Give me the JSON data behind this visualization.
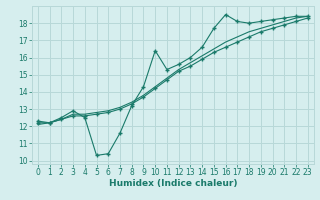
{
  "xlabel": "Humidex (Indice chaleur)",
  "ylabel": "",
  "background_color": "#d6eeee",
  "grid_color": "#b8d8d8",
  "line_color": "#1a7a6a",
  "xlim": [
    -0.5,
    23.5
  ],
  "ylim": [
    9.8,
    19.0
  ],
  "xticks": [
    0,
    1,
    2,
    3,
    4,
    5,
    6,
    7,
    8,
    9,
    10,
    11,
    12,
    13,
    14,
    15,
    16,
    17,
    18,
    19,
    20,
    21,
    22,
    23
  ],
  "yticks": [
    10,
    11,
    12,
    13,
    14,
    15,
    16,
    17,
    18
  ],
  "line1_x": [
    0,
    1,
    2,
    3,
    4,
    5,
    6,
    7,
    8,
    9,
    10,
    11,
    12,
    13,
    14,
    15,
    16,
    17,
    18,
    19,
    20,
    21,
    22,
    23
  ],
  "line1_y": [
    12.3,
    12.2,
    12.5,
    12.9,
    12.5,
    10.3,
    10.4,
    11.6,
    13.2,
    14.3,
    16.4,
    15.3,
    15.6,
    16.0,
    16.6,
    17.7,
    18.5,
    18.1,
    18.0,
    18.1,
    18.2,
    18.3,
    18.4,
    18.4
  ],
  "line2_x": [
    0,
    1,
    2,
    3,
    4,
    5,
    6,
    7,
    8,
    9,
    10,
    11,
    12,
    13,
    14,
    15,
    16,
    17,
    18,
    19,
    20,
    21,
    22,
    23
  ],
  "line2_y": [
    12.2,
    12.2,
    12.4,
    12.6,
    12.6,
    12.7,
    12.8,
    13.0,
    13.3,
    13.7,
    14.2,
    14.7,
    15.2,
    15.5,
    15.9,
    16.3,
    16.6,
    16.9,
    17.2,
    17.5,
    17.7,
    17.9,
    18.1,
    18.3
  ],
  "line3_x": [
    0,
    1,
    2,
    3,
    4,
    5,
    6,
    7,
    8,
    9,
    10,
    11,
    12,
    13,
    14,
    15,
    16,
    17,
    18,
    19,
    20,
    21,
    22,
    23
  ],
  "line3_y": [
    12.1,
    12.2,
    12.4,
    12.7,
    12.7,
    12.8,
    12.9,
    13.1,
    13.4,
    13.8,
    14.3,
    14.8,
    15.3,
    15.7,
    16.1,
    16.5,
    16.9,
    17.2,
    17.5,
    17.7,
    17.9,
    18.1,
    18.3,
    18.4
  ],
  "tick_fontsize": 5.5,
  "xlabel_fontsize": 6.5
}
